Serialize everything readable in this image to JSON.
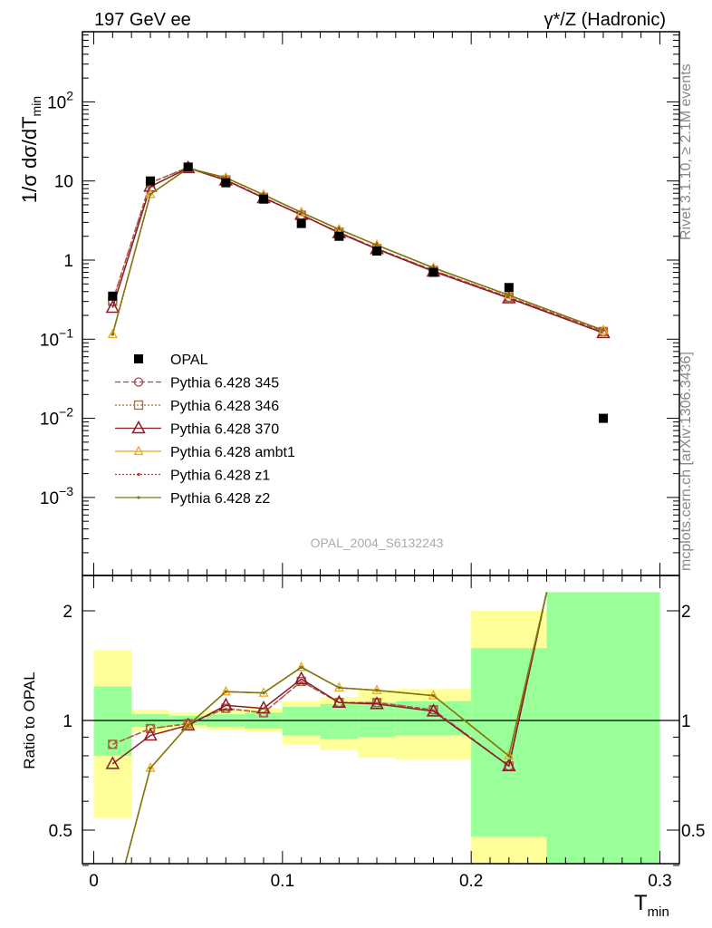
{
  "header": {
    "left": "197 GeV ee",
    "right": "γ*/Z (Hadronic)"
  },
  "side_labels": {
    "rivet": "Rivet 3.1.10, ≥ 2.1M events",
    "mcplots": "mcplots.cern.ch [arXiv:1306.3436]"
  },
  "watermark": "OPAL_2004_S6132243",
  "axis_labels": {
    "y_main_prefix": "1/σ dσ/dT",
    "y_main_sub": "min",
    "y_ratio": "Ratio to OPAL",
    "x_main": "T",
    "x_sub": "min"
  },
  "colors": {
    "opal": "#000000",
    "p345": "#c0394a",
    "p346": "#a0703a",
    "p370": "#8b1a2a",
    "ambt1": "#f0a818",
    "z1": "#dd2222",
    "z2": "#7a7a10",
    "band_inner": "#99ff99",
    "band_outer": "#ffff99"
  },
  "chart_data": [
    {
      "type": "line",
      "panel": "main",
      "scale": "log",
      "ylim": [
        0.0001,
        1000
      ],
      "xlim": [
        -0.005,
        0.3
      ],
      "y_ticks": [
        "10^-3",
        "10^-2",
        "10^-1",
        "1",
        "10",
        "10^2"
      ],
      "legend_position": "center-left",
      "series": [
        {
          "name": "OPAL",
          "style": "opal",
          "points": [
            [
              0.01,
              0.35
            ],
            [
              0.03,
              10.0
            ],
            [
              0.05,
              15.0
            ],
            [
              0.07,
              9.5
            ],
            [
              0.09,
              5.9
            ],
            [
              0.11,
              2.9
            ],
            [
              0.13,
              2.0
            ],
            [
              0.15,
              1.3
            ],
            [
              0.18,
              0.7
            ],
            [
              0.22,
              0.45
            ],
            [
              0.27,
              0.01
            ]
          ]
        },
        {
          "name": "Pythia 6.428 345",
          "style": "p345",
          "points": [
            [
              0.01,
              0.3
            ],
            [
              0.03,
              9.5
            ],
            [
              0.05,
              14.8
            ],
            [
              0.07,
              10.3
            ],
            [
              0.09,
              6.2
            ],
            [
              0.11,
              3.7
            ],
            [
              0.13,
              2.25
            ],
            [
              0.15,
              1.4
            ],
            [
              0.18,
              0.74
            ],
            [
              0.22,
              0.34
            ],
            [
              0.27,
              0.125
            ]
          ]
        },
        {
          "name": "Pythia 6.428 346",
          "style": "p346",
          "points": [
            [
              0.01,
              0.3
            ],
            [
              0.03,
              9.5
            ],
            [
              0.05,
              14.8
            ],
            [
              0.07,
              10.3
            ],
            [
              0.09,
              6.2
            ],
            [
              0.11,
              3.7
            ],
            [
              0.13,
              2.25
            ],
            [
              0.15,
              1.4
            ],
            [
              0.18,
              0.74
            ],
            [
              0.22,
              0.34
            ],
            [
              0.27,
              0.125
            ]
          ]
        },
        {
          "name": "Pythia 6.428 370",
          "style": "p370",
          "points": [
            [
              0.01,
              0.25
            ],
            [
              0.03,
              8.5
            ],
            [
              0.05,
              14.6
            ],
            [
              0.07,
              10.2
            ],
            [
              0.09,
              6.1
            ],
            [
              0.11,
              3.75
            ],
            [
              0.13,
              2.2
            ],
            [
              0.15,
              1.38
            ],
            [
              0.18,
              0.72
            ],
            [
              0.22,
              0.33
            ],
            [
              0.27,
              0.12
            ]
          ]
        },
        {
          "name": "Pythia 6.428 ambt1",
          "style": "ambt1",
          "points": [
            [
              0.01,
              0.115
            ],
            [
              0.03,
              6.8
            ],
            [
              0.05,
              14.5
            ],
            [
              0.07,
              11.0
            ],
            [
              0.09,
              6.7
            ],
            [
              0.11,
              4.0
            ],
            [
              0.13,
              2.45
            ],
            [
              0.15,
              1.55
            ],
            [
              0.18,
              0.8
            ],
            [
              0.22,
              0.36
            ],
            [
              0.27,
              0.13
            ]
          ]
        },
        {
          "name": "Pythia 6.428 z1",
          "style": "z1",
          "points": [
            [
              0.01,
              0.115
            ],
            [
              0.03,
              6.8
            ],
            [
              0.05,
              14.5
            ],
            [
              0.07,
              11.0
            ],
            [
              0.09,
              6.7
            ],
            [
              0.11,
              4.0
            ],
            [
              0.13,
              2.45
            ],
            [
              0.15,
              1.55
            ],
            [
              0.18,
              0.8
            ],
            [
              0.22,
              0.36
            ],
            [
              0.27,
              0.13
            ]
          ]
        },
        {
          "name": "Pythia 6.428 z2",
          "style": "z2",
          "points": [
            [
              0.01,
              0.115
            ],
            [
              0.03,
              6.8
            ],
            [
              0.05,
              14.5
            ],
            [
              0.07,
              11.0
            ],
            [
              0.09,
              6.7
            ],
            [
              0.11,
              4.0
            ],
            [
              0.13,
              2.45
            ],
            [
              0.15,
              1.55
            ],
            [
              0.18,
              0.8
            ],
            [
              0.22,
              0.36
            ],
            [
              0.27,
              0.13
            ]
          ]
        }
      ]
    },
    {
      "type": "line",
      "panel": "ratio",
      "ylabel": "Ratio to OPAL",
      "ylim": [
        0.35,
        2.25
      ],
      "xlim": [
        -0.005,
        0.3
      ],
      "x_ticks": [
        "0",
        "0.1",
        "0.2",
        "0.3"
      ],
      "y_ticks": [
        "0.5",
        "1",
        "2"
      ],
      "bands": [
        {
          "x": [
            0.0,
            0.02
          ],
          "inner": [
            0.8,
            1.24
          ],
          "outer": [
            0.54,
            1.56
          ]
        },
        {
          "x": [
            0.02,
            0.04
          ],
          "inner": [
            0.96,
            1.04
          ],
          "outer": [
            0.93,
            1.07
          ]
        },
        {
          "x": [
            0.04,
            0.06
          ],
          "inner": [
            0.97,
            1.03
          ],
          "outer": [
            0.95,
            1.05
          ]
        },
        {
          "x": [
            0.06,
            0.08
          ],
          "inner": [
            0.96,
            1.04
          ],
          "outer": [
            0.94,
            1.07
          ]
        },
        {
          "x": [
            0.08,
            0.1
          ],
          "inner": [
            0.95,
            1.05
          ],
          "outer": [
            0.93,
            1.08
          ]
        },
        {
          "x": [
            0.1,
            0.12
          ],
          "inner": [
            0.91,
            1.09
          ],
          "outer": [
            0.86,
            1.13
          ]
        },
        {
          "x": [
            0.12,
            0.14
          ],
          "inner": [
            0.89,
            1.11
          ],
          "outer": [
            0.83,
            1.16
          ]
        },
        {
          "x": [
            0.14,
            0.16
          ],
          "inner": [
            0.9,
            1.12
          ],
          "outer": [
            0.79,
            1.21
          ]
        },
        {
          "x": [
            0.16,
            0.2
          ],
          "inner": [
            0.91,
            1.13
          ],
          "outer": [
            0.78,
            1.22
          ]
        },
        {
          "x": [
            0.2,
            0.24
          ],
          "inner": [
            0.48,
            1.58
          ],
          "outer": [
            0.35,
            2.0
          ]
        },
        {
          "x": [
            0.24,
            0.3
          ],
          "inner": [
            0.35,
            2.25
          ],
          "outer": [
            0.35,
            2.25
          ]
        }
      ],
      "series": [
        {
          "name": "Pythia 6.428 345",
          "style": "p345",
          "points": [
            [
              0.01,
              0.86
            ],
            [
              0.03,
              0.95
            ],
            [
              0.05,
              0.98
            ],
            [
              0.07,
              1.08
            ],
            [
              0.09,
              1.05
            ],
            [
              0.11,
              1.28
            ],
            [
              0.13,
              1.12
            ],
            [
              0.15,
              1.12
            ],
            [
              0.18,
              1.07
            ],
            [
              0.22,
              0.75
            ],
            [
              0.24,
              2.25
            ]
          ]
        },
        {
          "name": "Pythia 6.428 346",
          "style": "p346",
          "points": [
            [
              0.01,
              0.86
            ],
            [
              0.03,
              0.95
            ],
            [
              0.05,
              0.98
            ],
            [
              0.07,
              1.08
            ],
            [
              0.09,
              1.05
            ],
            [
              0.11,
              1.28
            ],
            [
              0.13,
              1.12
            ],
            [
              0.15,
              1.12
            ],
            [
              0.18,
              1.07
            ],
            [
              0.22,
              0.75
            ],
            [
              0.24,
              2.25
            ]
          ]
        },
        {
          "name": "Pythia 6.428 370",
          "style": "p370",
          "points": [
            [
              0.01,
              0.76
            ],
            [
              0.03,
              0.91
            ],
            [
              0.05,
              0.97
            ],
            [
              0.07,
              1.1
            ],
            [
              0.09,
              1.08
            ],
            [
              0.11,
              1.3
            ],
            [
              0.13,
              1.12
            ],
            [
              0.15,
              1.11
            ],
            [
              0.18,
              1.06
            ],
            [
              0.22,
              0.75
            ],
            [
              0.24,
              2.25
            ]
          ]
        },
        {
          "name": "Pythia 6.428 ambt1",
          "style": "ambt1",
          "points": [
            [
              0.0135,
              0.35
            ],
            [
              0.03,
              0.74
            ],
            [
              0.05,
              0.97
            ],
            [
              0.07,
              1.2
            ],
            [
              0.09,
              1.19
            ],
            [
              0.11,
              1.4
            ],
            [
              0.13,
              1.23
            ],
            [
              0.15,
              1.21
            ],
            [
              0.18,
              1.17
            ],
            [
              0.22,
              0.8
            ],
            [
              0.24,
              2.25
            ]
          ]
        },
        {
          "name": "Pythia 6.428 z1",
          "style": "z1",
          "points": [
            [
              0.0135,
              0.35
            ],
            [
              0.03,
              0.74
            ],
            [
              0.05,
              0.97
            ],
            [
              0.07,
              1.2
            ],
            [
              0.09,
              1.19
            ],
            [
              0.11,
              1.4
            ],
            [
              0.13,
              1.23
            ],
            [
              0.15,
              1.21
            ],
            [
              0.18,
              1.17
            ],
            [
              0.22,
              0.8
            ],
            [
              0.24,
              2.25
            ]
          ]
        },
        {
          "name": "Pythia 6.428 z2",
          "style": "z2",
          "points": [
            [
              0.0135,
              0.35
            ],
            [
              0.03,
              0.74
            ],
            [
              0.05,
              0.97
            ],
            [
              0.07,
              1.2
            ],
            [
              0.09,
              1.19
            ],
            [
              0.11,
              1.4
            ],
            [
              0.13,
              1.23
            ],
            [
              0.15,
              1.21
            ],
            [
              0.18,
              1.17
            ],
            [
              0.22,
              0.8
            ],
            [
              0.24,
              2.25
            ]
          ]
        }
      ]
    }
  ]
}
